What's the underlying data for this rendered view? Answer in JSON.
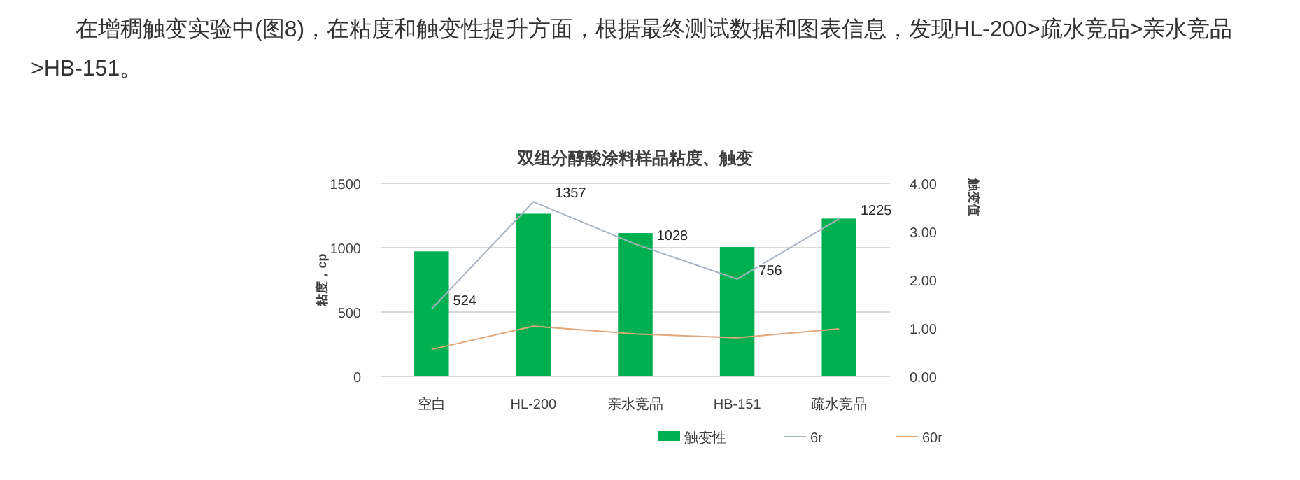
{
  "chart_data": {
    "type": "bar",
    "title": "双组分醇酸涂料样品粘度、触变",
    "ylabel": "粘度，cp",
    "y2label": "触变值",
    "annotations": [
      "在增稠触变实验中(图8)，在粘度和触变性提升方面，根据最终测试数据和图表信息，发现HL-200>疏水竞品>亲水竞品>HB-151。"
    ],
    "categories": [
      "空白",
      "HL-200",
      "亲水竞品",
      "HB-151",
      "疏水竞品"
    ],
    "series": [
      {
        "name": "触变性",
        "axis": "y2",
        "color": "#00b050",
        "values": [
          2.59,
          3.37,
          2.97,
          2.68,
          3.27
        ]
      },
      {
        "name": "6r",
        "type": "line",
        "color": "#a9b4c2",
        "values": [
          524,
          1357,
          1028,
          756,
          1225
        ],
        "value_labels": [
          "524",
          "1357",
          "1028",
          "756",
          "1225"
        ]
      },
      {
        "name": "60r",
        "type": "line",
        "color": "#e2a77a",
        "values": [
          210,
          390,
          330,
          300,
          370
        ]
      }
    ],
    "ylim": [
      0,
      1500
    ],
    "yticks": [
      0,
      500,
      1000,
      1500
    ],
    "y2lim": [
      0,
      4
    ],
    "y2ticks": [
      {
        "value": 0,
        "label": "0.00"
      },
      {
        "value": 1,
        "label": "1.00"
      },
      {
        "value": 2,
        "label": "2.00"
      },
      {
        "value": 3,
        "label": "3.00"
      },
      {
        "value": 4,
        "label": "4.00"
      }
    ],
    "grid": "y",
    "legend": "bottom",
    "marker": "none",
    "line_style": "solid"
  }
}
